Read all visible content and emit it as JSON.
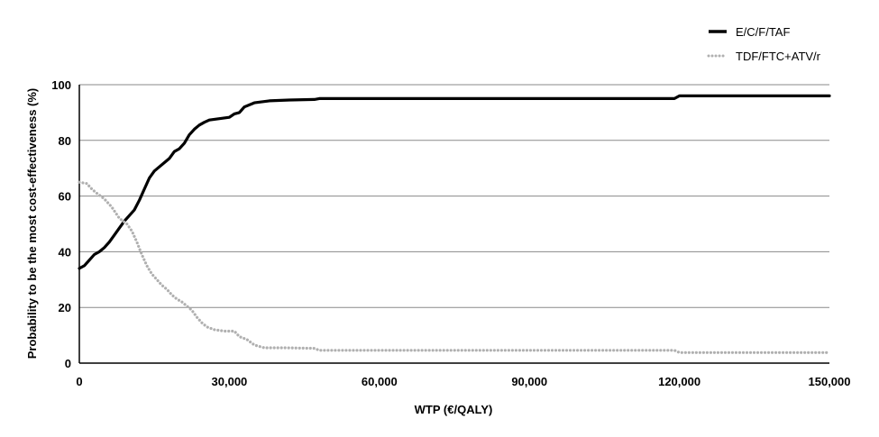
{
  "chart_data": {
    "type": "line",
    "title": "",
    "xlabel": "WTP (€/QALY)",
    "ylabel": "Probability to be the most cost-effectiveness (%)",
    "xlim": [
      0,
      150000
    ],
    "ylim": [
      0,
      100
    ],
    "x_ticks": [
      0,
      30000,
      60000,
      90000,
      120000,
      150000
    ],
    "x_tick_labels": [
      "0",
      "30,000",
      "60,000",
      "90,000",
      "120,000",
      "150,000"
    ],
    "y_ticks": [
      0,
      20,
      40,
      60,
      80,
      100
    ],
    "y_tick_labels": [
      "0",
      "20",
      "40",
      "60",
      "80",
      "100"
    ],
    "grid": "horizontal",
    "legend_position": "top-right",
    "series": [
      {
        "name": "E/C/F/TAF",
        "color": "#000000",
        "style": "solid",
        "points": [
          [
            0,
            34
          ],
          [
            1000,
            35
          ],
          [
            2000,
            37
          ],
          [
            3000,
            39
          ],
          [
            4000,
            40
          ],
          [
            5000,
            41.5
          ],
          [
            6000,
            43.5
          ],
          [
            7000,
            46
          ],
          [
            8000,
            48.5
          ],
          [
            9000,
            51
          ],
          [
            10000,
            53
          ],
          [
            11000,
            55
          ],
          [
            12000,
            58.5
          ],
          [
            13000,
            62.5
          ],
          [
            14000,
            66.5
          ],
          [
            15000,
            69
          ],
          [
            16000,
            70.5
          ],
          [
            17000,
            72
          ],
          [
            18000,
            73.5
          ],
          [
            19000,
            76
          ],
          [
            20000,
            77
          ],
          [
            21000,
            79
          ],
          [
            22000,
            82
          ],
          [
            23000,
            84
          ],
          [
            24000,
            85.5
          ],
          [
            25000,
            86.5
          ],
          [
            26000,
            87.3
          ],
          [
            28000,
            87.8
          ],
          [
            30000,
            88.3
          ],
          [
            31000,
            89.5
          ],
          [
            32000,
            90
          ],
          [
            33000,
            92
          ],
          [
            35000,
            93.5
          ],
          [
            38000,
            94.2
          ],
          [
            42000,
            94.5
          ],
          [
            47000,
            94.7
          ],
          [
            48000,
            95
          ],
          [
            60000,
            95
          ],
          [
            90000,
            95
          ],
          [
            119000,
            95
          ],
          [
            120000,
            96
          ],
          [
            150000,
            96
          ]
        ]
      },
      {
        "name": "TDF/FTC+ATV/r",
        "color": "#b0b0b0",
        "style": "dotted",
        "points": [
          [
            0,
            65
          ],
          [
            1500,
            64.5
          ],
          [
            2500,
            62.5
          ],
          [
            3500,
            61
          ],
          [
            5000,
            59
          ],
          [
            6500,
            56
          ],
          [
            8000,
            52
          ],
          [
            9500,
            50
          ],
          [
            10500,
            47.5
          ],
          [
            11500,
            43.5
          ],
          [
            12500,
            39
          ],
          [
            13500,
            35
          ],
          [
            14500,
            32
          ],
          [
            15500,
            30
          ],
          [
            16500,
            28
          ],
          [
            17500,
            26.5
          ],
          [
            18500,
            24.5
          ],
          [
            19500,
            23
          ],
          [
            20500,
            22
          ],
          [
            21500,
            20.5
          ],
          [
            22500,
            19
          ],
          [
            23500,
            16.5
          ],
          [
            24500,
            14.5
          ],
          [
            25500,
            13
          ],
          [
            27000,
            12
          ],
          [
            29000,
            11.5
          ],
          [
            31000,
            11.5
          ],
          [
            32000,
            9.5
          ],
          [
            33500,
            8.5
          ],
          [
            35000,
            6.5
          ],
          [
            37000,
            5.5
          ],
          [
            41000,
            5.5
          ],
          [
            47000,
            5.3
          ],
          [
            48000,
            4.6
          ],
          [
            60000,
            4.6
          ],
          [
            90000,
            4.6
          ],
          [
            119000,
            4.6
          ],
          [
            120000,
            3.8
          ],
          [
            150000,
            3.8
          ]
        ]
      }
    ]
  }
}
